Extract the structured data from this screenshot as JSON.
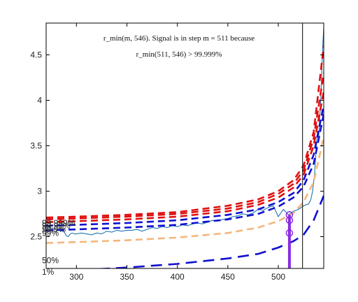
{
  "chart_data": {
    "type": "line",
    "title": "",
    "xlabel": "",
    "ylabel": "",
    "xlim": [
      270,
      545
    ],
    "ylim": [
      2.15,
      4.85
    ],
    "x_ticks": [
      300,
      350,
      400,
      450,
      500
    ],
    "y_ticks": [
      2.5,
      3,
      3.5,
      4,
      4.5
    ],
    "grid": false,
    "annotation": {
      "line1": "r_min(m, 546). Signal is in step m = 511 because",
      "line2": "r_min(511, 546) > 99.999%"
    },
    "percentile_labels": [
      {
        "text": "99.999%",
        "y": 2.65
      },
      {
        "text": "99.99%",
        "y": 2.62
      },
      {
        "text": "99.9%",
        "y": 2.58
      },
      {
        "text": "99%",
        "y": 2.54
      },
      {
        "text": "50%",
        "y": 2.24
      },
      {
        "text": "1%",
        "y": 2.11
      }
    ],
    "vertical_line_x": 524,
    "marker": {
      "x": 511,
      "y_values": [
        2.74,
        2.68,
        2.54
      ]
    },
    "series": [
      {
        "color": "#1f77b4",
        "style": "solid",
        "x": [
          271,
          274,
          278,
          282,
          286,
          288,
          290,
          292,
          294,
          296,
          298,
          300,
          305,
          310,
          315,
          320,
          325,
          330,
          335,
          340,
          345,
          350,
          355,
          360,
          365,
          370,
          375,
          380,
          385,
          390,
          395,
          400,
          405,
          410,
          415,
          420,
          425,
          430,
          435,
          440,
          445,
          450,
          455,
          460,
          465,
          470,
          475,
          480,
          485,
          490,
          495,
          500,
          505,
          510,
          515,
          520,
          525,
          530,
          532,
          534,
          536,
          538,
          539,
          540,
          541,
          542,
          543,
          544,
          545
        ],
        "y": [
          2.61,
          2.6,
          2.58,
          2.57,
          2.56,
          2.55,
          2.51,
          2.5,
          2.53,
          2.54,
          2.53,
          2.53,
          2.54,
          2.53,
          2.52,
          2.54,
          2.53,
          2.56,
          2.55,
          2.57,
          2.56,
          2.57,
          2.57,
          2.58,
          2.56,
          2.58,
          2.6,
          2.59,
          2.61,
          2.6,
          2.62,
          2.61,
          2.63,
          2.62,
          2.64,
          2.65,
          2.64,
          2.66,
          2.68,
          2.67,
          2.69,
          2.7,
          2.72,
          2.73,
          2.75,
          2.74,
          2.76,
          2.8,
          2.79,
          2.82,
          2.84,
          2.72,
          2.8,
          2.74,
          2.78,
          2.8,
          2.84,
          2.86,
          2.9,
          3.0,
          3.2,
          3.55,
          3.65,
          3.6,
          3.8,
          4.0,
          4.3,
          4.6,
          4.8
        ]
      },
      {
        "color": "#1010d0",
        "style": "dashed-long",
        "x": [
          270,
          300,
          350,
          400,
          450,
          480,
          500,
          515,
          525,
          535,
          545
        ],
        "y": [
          2.12,
          2.13,
          2.16,
          2.2,
          2.26,
          2.31,
          2.38,
          2.45,
          2.52,
          2.68,
          2.95
        ]
      },
      {
        "color": "#f4b67a",
        "style": "dashed",
        "x": [
          270,
          300,
          350,
          400,
          450,
          480,
          500,
          515,
          525,
          535,
          545
        ],
        "y": [
          2.43,
          2.44,
          2.46,
          2.49,
          2.54,
          2.6,
          2.67,
          2.76,
          2.88,
          3.1,
          3.6
        ]
      },
      {
        "color": "#1010d0",
        "style": "dashed",
        "x": [
          270,
          300,
          350,
          400,
          450,
          480,
          500,
          515,
          525,
          535,
          545
        ],
        "y": [
          2.57,
          2.58,
          2.6,
          2.63,
          2.69,
          2.75,
          2.83,
          2.93,
          3.05,
          3.3,
          3.85
        ]
      },
      {
        "color": "#1010d0",
        "style": "dashed",
        "x": [
          270,
          300,
          350,
          400,
          450,
          480,
          500,
          515,
          525,
          535,
          545
        ],
        "y": [
          2.62,
          2.63,
          2.65,
          2.68,
          2.74,
          2.8,
          2.88,
          2.98,
          3.12,
          3.4,
          3.95
        ]
      },
      {
        "color": "#e01010",
        "style": "dashed",
        "x": [
          270,
          300,
          350,
          400,
          450,
          480,
          500,
          515,
          525,
          535,
          545
        ],
        "y": [
          2.66,
          2.67,
          2.69,
          2.72,
          2.78,
          2.85,
          2.93,
          3.04,
          3.18,
          3.5,
          4.1
        ]
      },
      {
        "color": "#e01010",
        "style": "dashed",
        "x": [
          270,
          300,
          350,
          400,
          450,
          480,
          500,
          515,
          525,
          535,
          545
        ],
        "y": [
          2.69,
          2.7,
          2.72,
          2.75,
          2.81,
          2.88,
          2.97,
          3.08,
          3.23,
          3.58,
          4.3
        ]
      },
      {
        "color": "#e01010",
        "style": "dashed",
        "x": [
          270,
          300,
          350,
          400,
          450,
          480,
          500,
          515,
          525,
          535,
          545
        ],
        "y": [
          2.71,
          2.72,
          2.74,
          2.77,
          2.84,
          2.91,
          3.0,
          3.12,
          3.28,
          3.65,
          4.6
        ]
      }
    ]
  }
}
